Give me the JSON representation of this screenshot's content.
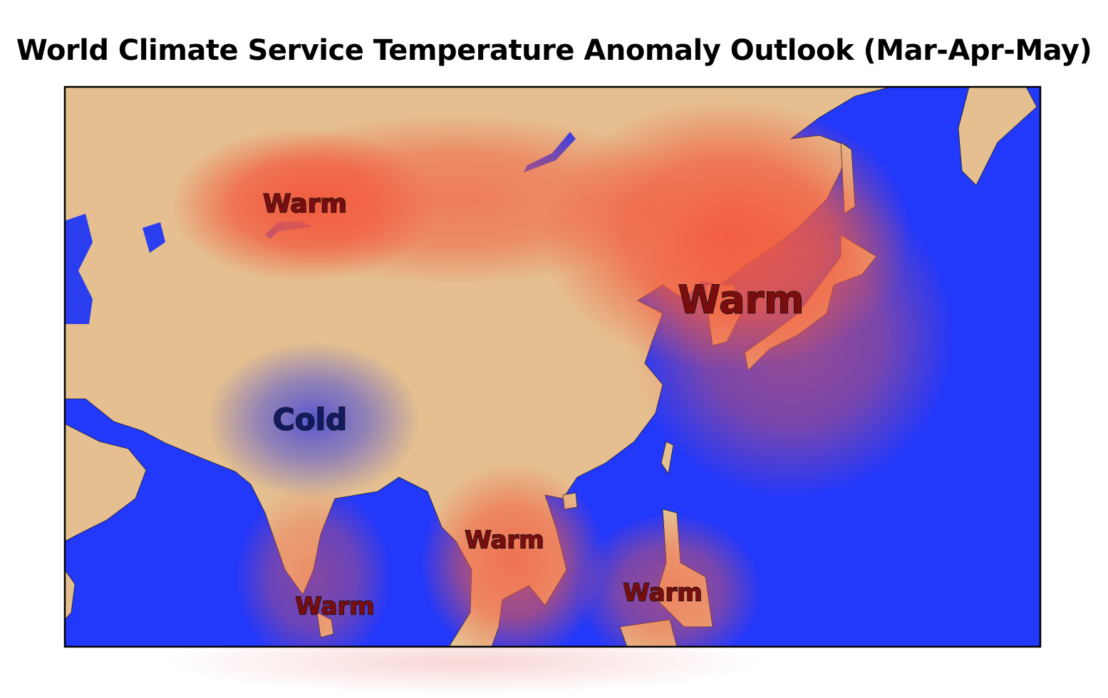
{
  "title": "World Climate Service Temperature Anomaly Outlook (Mar-Apr-May)",
  "map": {
    "labels": [
      "Warm",
      "Warm",
      "Cold",
      "Warm",
      "Warm",
      "Warm"
    ]
  }
}
